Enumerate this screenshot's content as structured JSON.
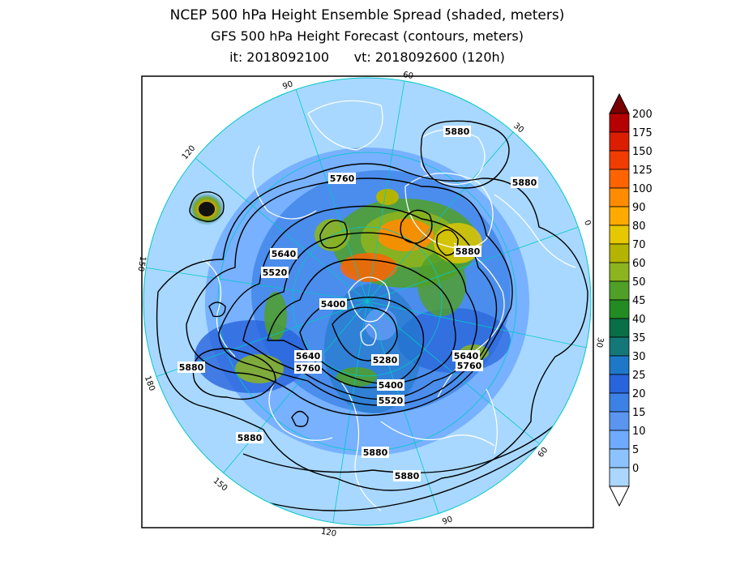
{
  "title": {
    "line1": "NCEP 500 hPa Height Ensemble Spread (shaded, meters)",
    "line2": "GFS 500 hPa Height Forecast (contours, meters)",
    "line3_it": "it: 2018092100",
    "line3_vt": "vt: 2018092600 (120h)"
  },
  "map": {
    "projection": "north-polar-stereographic",
    "background_color": "#a8d8ff",
    "outline_color": "#000000",
    "coastline_color": "#ffffff",
    "graticule_color": "#00c8c8",
    "longitude_labels": [
      "60",
      "30",
      "0",
      "30",
      "60",
      "90",
      "120",
      "150",
      "180",
      "150",
      "120",
      "90"
    ],
    "contour_labels": [
      {
        "text": "5880",
        "area": "north-atlantic"
      },
      {
        "text": "5880",
        "area": "europe-east"
      },
      {
        "text": "5760",
        "area": "greenland"
      },
      {
        "text": "5880",
        "area": "europe"
      },
      {
        "text": "5640",
        "area": "east-siberia"
      },
      {
        "text": "5520",
        "area": "east-siberia"
      },
      {
        "text": "5400",
        "area": "arctic"
      },
      {
        "text": "5640",
        "area": "bering"
      },
      {
        "text": "5760",
        "area": "bering"
      },
      {
        "text": "5280",
        "area": "canada"
      },
      {
        "text": "5400",
        "area": "canada"
      },
      {
        "text": "5520",
        "area": "canada"
      },
      {
        "text": "5640",
        "area": "russia"
      },
      {
        "text": "5760",
        "area": "russia"
      },
      {
        "text": "5880",
        "area": "pacific"
      },
      {
        "text": "5880",
        "area": "pacific-south"
      },
      {
        "text": "5880",
        "area": "usa"
      },
      {
        "text": "5880",
        "area": "atlantic-south"
      }
    ]
  },
  "colorbar": {
    "labels": [
      "200",
      "175",
      "150",
      "125",
      "100",
      "90",
      "80",
      "70",
      "60",
      "50",
      "45",
      "40",
      "35",
      "30",
      "25",
      "20",
      "15",
      "10",
      "5",
      "0"
    ],
    "colors": [
      "#b40000",
      "#dc1e00",
      "#f03c00",
      "#ff6400",
      "#ff8c00",
      "#ffaa00",
      "#e6c800",
      "#b4b400",
      "#8cb41e",
      "#50a028",
      "#228b22",
      "#0a6e46",
      "#147878",
      "#1e78c8",
      "#2864dc",
      "#3c82e6",
      "#5a96f0",
      "#6eaaff",
      "#8cc3ff",
      "#aad6ff"
    ],
    "top_arrow_color": "#780000",
    "bottom_arrow_color": "#ffffff"
  }
}
